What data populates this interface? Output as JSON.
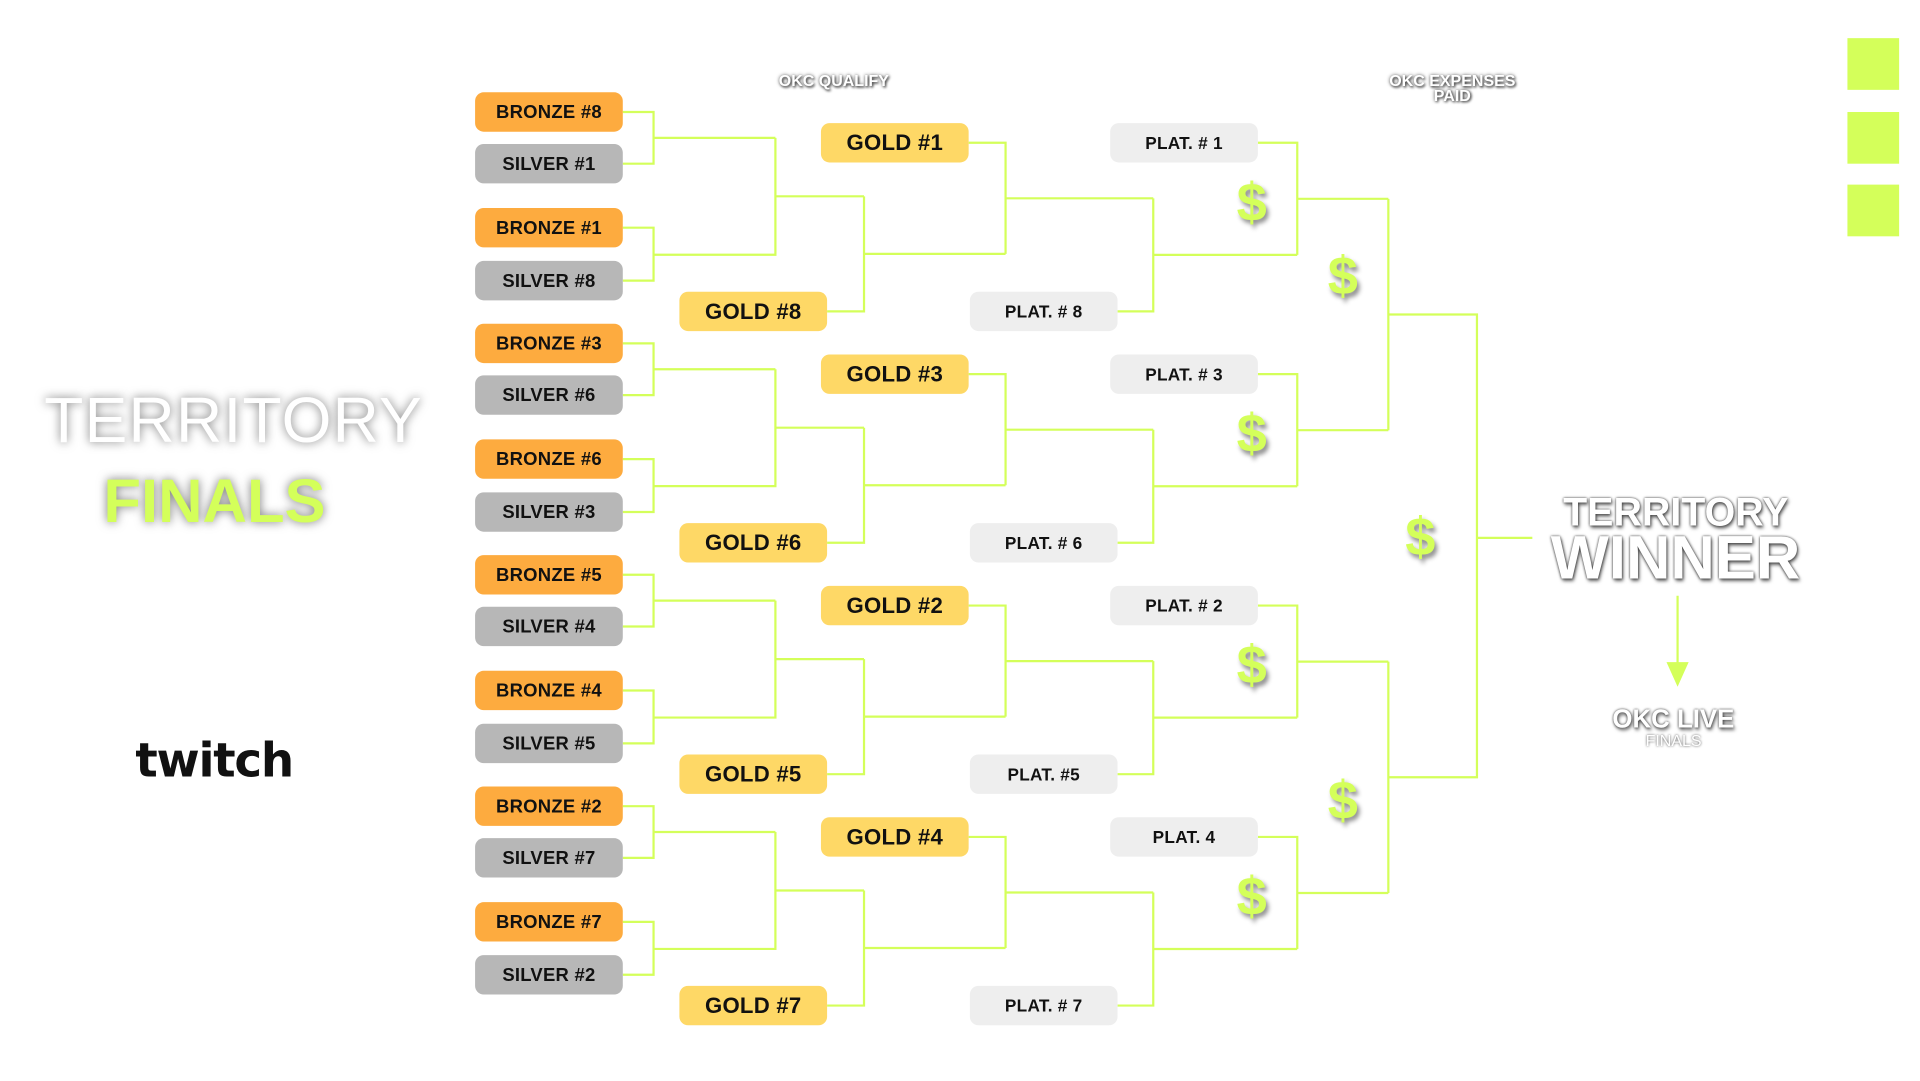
{
  "headers": {
    "qualify": "OKC QUALIFY",
    "expenses_line1": "OKC EXPENSES",
    "expenses_line2": "PAID"
  },
  "title": {
    "line1": "TERRITORY",
    "line2": "FINALS"
  },
  "winner": {
    "line1": "TERRITORY",
    "line2": "WINNER",
    "dest_line1": "OKC LIVE",
    "dest_line2": "FINALS"
  },
  "logos": {
    "twitch": "twitch",
    "game_icon": "counter-strike-icon"
  },
  "colors": {
    "accent": "#d4ff5a",
    "bronze": "#fdab3f",
    "silver": "#b7b7b7",
    "gold": "#fed866",
    "plat": "#eeeeee"
  },
  "currency_symbol": "$",
  "quarters": [
    {
      "bronze1": "BRONZE #8",
      "silver1": "SILVER #1",
      "bronze2": "BRONZE #1",
      "silver2": "SILVER #8",
      "gold_left": "GOLD #8",
      "gold_right": "GOLD #1",
      "plat_left": "PLAT. # 8",
      "plat_right": "PLAT. # 1"
    },
    {
      "bronze1": "BRONZE #3",
      "silver1": "SILVER #6",
      "bronze2": "BRONZE #6",
      "silver2": "SILVER #3",
      "gold_left": "GOLD #6",
      "gold_right": "GOLD #3",
      "plat_left": "PLAT. # 6",
      "plat_right": "PLAT. # 3"
    },
    {
      "bronze1": "BRONZE #5",
      "silver1": "SILVER #4",
      "bronze2": "BRONZE #4",
      "silver2": "SILVER #5",
      "gold_left": "GOLD #5",
      "gold_right": "GOLD #2",
      "plat_left": "PLAT. #5",
      "plat_right": "PLAT. # 2"
    },
    {
      "bronze1": "BRONZE #2",
      "silver1": "SILVER #7",
      "bronze2": "BRONZE #7",
      "silver2": "SILVER #2",
      "gold_left": "GOLD #7",
      "gold_right": "GOLD #4",
      "plat_left": "PLAT. # 7",
      "plat_right": "PLAT. 4"
    }
  ]
}
